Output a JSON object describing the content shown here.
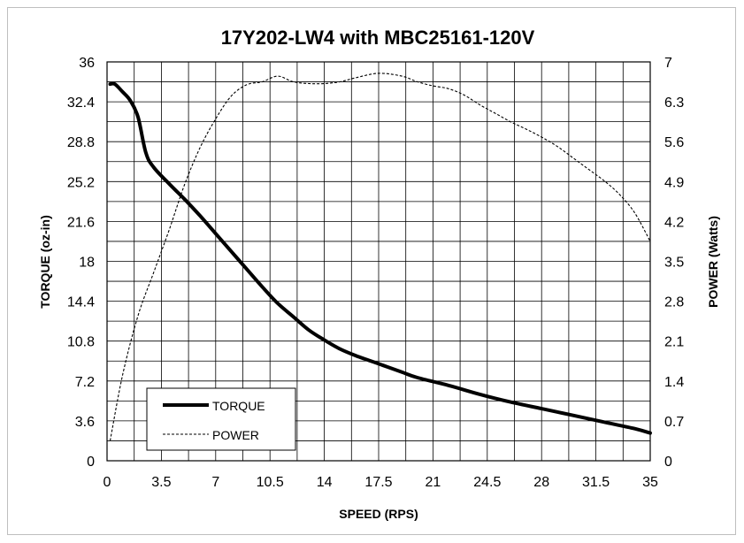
{
  "chart_data": {
    "type": "line",
    "title": "17Y202-LW4 with MBC25161-120V",
    "xlabel": "SPEED (RPS)",
    "ylabel": "TORQUE (oz-in)",
    "y2label": "POWER (Watts)",
    "xlim": [
      0,
      35
    ],
    "ylim": [
      0,
      36
    ],
    "y2lim": [
      0,
      7
    ],
    "x_ticks": [
      "0",
      "3.5",
      "7",
      "10.5",
      "14",
      "17.5",
      "21",
      "24.5",
      "28",
      "31.5",
      "35"
    ],
    "y_ticks": [
      "0",
      "3.6",
      "7.2",
      "10.8",
      "14.4",
      "18",
      "21.6",
      "25.2",
      "28.8",
      "32.4",
      "36"
    ],
    "y2_ticks": [
      "0",
      "0.7",
      "1.4",
      "2.1",
      "2.8",
      "3.5",
      "4.2",
      "4.9",
      "5.6",
      "6.3",
      "7"
    ],
    "grid": true,
    "legend_position": "bottom-left",
    "series": [
      {
        "name": "TORQUE",
        "axis": "left",
        "style": "solid-thick",
        "color": "#000000",
        "points": [
          [
            0.2,
            34.0
          ],
          [
            0.5,
            34.0
          ],
          [
            1.0,
            33.3
          ],
          [
            1.5,
            32.5
          ],
          [
            2.0,
            31.0
          ],
          [
            2.5,
            27.8
          ],
          [
            3.0,
            26.5
          ],
          [
            4.0,
            25.0
          ],
          [
            5.0,
            23.6
          ],
          [
            6.0,
            22.1
          ],
          [
            7.0,
            20.5
          ],
          [
            8.0,
            18.9
          ],
          [
            9.0,
            17.3
          ],
          [
            10.0,
            15.7
          ],
          [
            11.0,
            14.2
          ],
          [
            12.0,
            13.0
          ],
          [
            13.0,
            11.8
          ],
          [
            14.0,
            10.9
          ],
          [
            15.0,
            10.1
          ],
          [
            16.0,
            9.5
          ],
          [
            17.0,
            9.0
          ],
          [
            18.0,
            8.5
          ],
          [
            19.0,
            8.0
          ],
          [
            20.0,
            7.5
          ],
          [
            22.0,
            6.8
          ],
          [
            24.0,
            6.0
          ],
          [
            26.0,
            5.3
          ],
          [
            28.0,
            4.7
          ],
          [
            30.0,
            4.1
          ],
          [
            32.0,
            3.5
          ],
          [
            34.0,
            2.9
          ],
          [
            35.0,
            2.5
          ]
        ]
      },
      {
        "name": "POWER",
        "axis": "right",
        "style": "dashed-thin",
        "color": "#000000",
        "points": [
          [
            0.2,
            0.35
          ],
          [
            1.0,
            1.5
          ],
          [
            2.0,
            2.55
          ],
          [
            3.0,
            3.3
          ],
          [
            4.0,
            4.05
          ],
          [
            5.0,
            4.85
          ],
          [
            6.0,
            5.5
          ],
          [
            7.0,
            6.0
          ],
          [
            8.0,
            6.4
          ],
          [
            9.0,
            6.6
          ],
          [
            10.0,
            6.65
          ],
          [
            11.0,
            6.75
          ],
          [
            12.0,
            6.65
          ],
          [
            13.0,
            6.62
          ],
          [
            14.0,
            6.62
          ],
          [
            15.0,
            6.65
          ],
          [
            16.0,
            6.72
          ],
          [
            17.5,
            6.8
          ],
          [
            19.0,
            6.75
          ],
          [
            20.0,
            6.65
          ],
          [
            21.0,
            6.58
          ],
          [
            22.0,
            6.53
          ],
          [
            23.0,
            6.42
          ],
          [
            24.0,
            6.25
          ],
          [
            25.0,
            6.1
          ],
          [
            26.0,
            5.95
          ],
          [
            27.0,
            5.82
          ],
          [
            28.0,
            5.68
          ],
          [
            29.0,
            5.52
          ],
          [
            30.0,
            5.32
          ],
          [
            31.0,
            5.12
          ],
          [
            32.0,
            4.92
          ],
          [
            33.0,
            4.68
          ],
          [
            34.0,
            4.35
          ],
          [
            35.0,
            3.85
          ]
        ]
      }
    ]
  }
}
